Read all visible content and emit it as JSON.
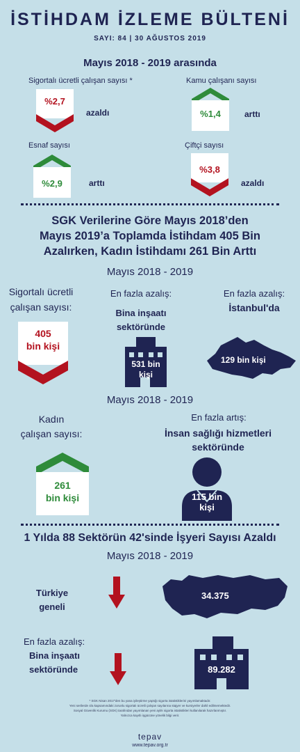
{
  "header": {
    "title": "İSTİHDAM İZLEME BÜLTENİ",
    "issue": "SAYI: 84 | 30 AĞUSTOS 2019"
  },
  "section1": {
    "title": "Mayıs 2018 - 2019 arasında",
    "items": [
      {
        "label": "Sigortalı ücretli çalışan sayısı *",
        "value": "%2,7",
        "direction": "azaldı",
        "trend": "down"
      },
      {
        "label": "Kamu çalışanı sayısı",
        "value": "%1,4",
        "direction": "arttı",
        "trend": "up"
      },
      {
        "label": "Esnaf sayısı",
        "value": "%2,9",
        "direction": "arttı",
        "trend": "up"
      },
      {
        "label": "Çiftçi sayısı",
        "value": "%3,8",
        "direction": "azaldı",
        "trend": "down"
      }
    ]
  },
  "section2": {
    "headline_line1": "SGK Verilerine Göre Mayıs 2018’den",
    "headline_line2": "Mayıs 2019’a Toplamda İstihdam 405 Bin",
    "headline_line3": "Azalırken, Kadın İstihdamı 261 Bin Arttı",
    "period1": "Mayıs 2018 - 2019",
    "insured_label_1": "Sigortalı ücretli",
    "insured_label_2": "çalışan sayısı:",
    "insured_value_1": "405",
    "insured_value_2": "bin kişi",
    "sector_title": "En fazla azalış:",
    "sector_name_1": "Bina inşaatı",
    "sector_name_2": "sektöründe",
    "sector_value_1": "531 bin",
    "sector_value_2": "kişi",
    "city_title": "En fazla azalış:",
    "city_name": "İstanbul'da",
    "city_value": "129 bin kişi",
    "period2": "Mayıs 2018 - 2019",
    "women_label_1": "Kadın",
    "women_label_2": "çalışan sayısı:",
    "women_value_1": "261",
    "women_value_2": "bin kişi",
    "increase_title": "En fazla artış:",
    "increase_sector_1": "İnsan sağlığı hizmetleri",
    "increase_sector_2": "sektöründe",
    "increase_value_1": "115 bin",
    "increase_value_2": "kişi"
  },
  "section3": {
    "headline": "1 Yılda 88 Sektörün 42'sinde İşyeri Sayısı Azaldı",
    "period": "Mayıs 2018 - 2019",
    "country_label_1": "Türkiye",
    "country_label_2": "geneli",
    "country_value": "34.375",
    "sector_title": "En fazla azalış:",
    "sector_name_1": "Bina inşaatı",
    "sector_name_2": "sektöründe",
    "sector_value": "89.282"
  },
  "footer": {
    "note_1": "* SGK Nisan 2017'den bu yana iyileştirme yaptığı sigorta istatistiklerini yayımlamaktadır.",
    "note_2": "Yeni serilerde 4/a kapsamındaki zorunlu sigortalı ücretli çalışan sayılarına stajyer ve kursiyerler dahil edilmemektedir.",
    "note_3": "Sosyal Güvenlik Kurumu (SGK) tarafından yayımlanan yeni aylık sigorta istatistikleri kullanılarak hazırlanmıştır.",
    "note_4": "Yalnızca kayıtlı işgücüne yönelik bilgi verir.",
    "brand": "tepav",
    "url": "www.tepav.org.tr"
  },
  "colors": {
    "background": "#c5dfe8",
    "navy": "#1f2452",
    "down_red": "#b3121f",
    "up_green": "#2e8b3a"
  }
}
